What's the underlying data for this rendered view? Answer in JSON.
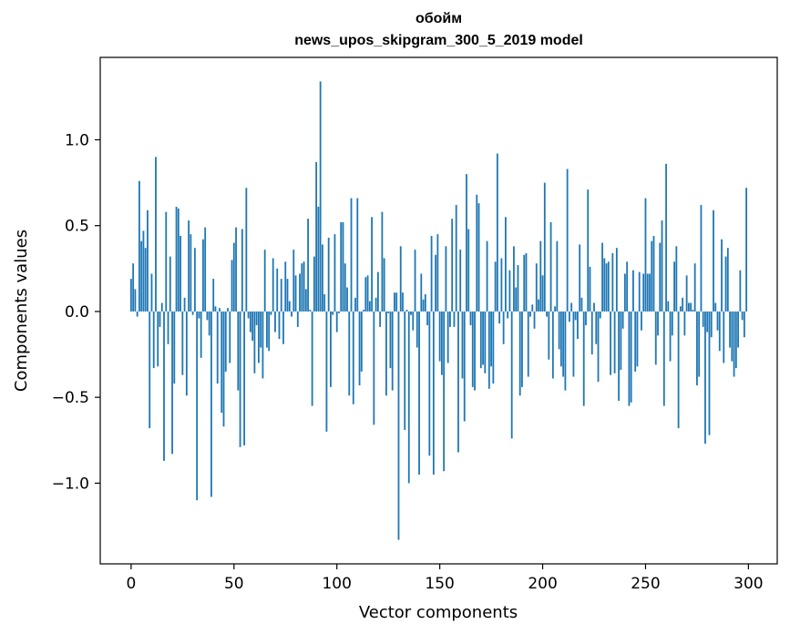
{
  "chart_data": {
    "type": "bar",
    "title": "обойм",
    "subtitle": "news_upos_skipgram_300_5_2019 model",
    "xlabel": "Vector components",
    "ylabel": "Components values",
    "xlim": [
      -15,
      314
    ],
    "ylim": [
      -1.47,
      1.48
    ],
    "x_ticks": [
      0,
      50,
      100,
      150,
      200,
      250,
      300
    ],
    "x_tick_labels": [
      "0",
      "50",
      "100",
      "150",
      "200",
      "250",
      "300"
    ],
    "y_ticks": [
      -1.0,
      -0.5,
      0.0,
      0.5,
      1.0
    ],
    "y_tick_labels": [
      "−1.0",
      "−0.5",
      "0.0",
      "0.5",
      "1.0"
    ],
    "bar_color": "#1f77b4",
    "grid": false,
    "values": [
      0.19,
      0.28,
      0.13,
      -0.03,
      0.76,
      0.41,
      0.47,
      0.37,
      0.59,
      -0.68,
      0.22,
      -0.33,
      0.9,
      -0.32,
      -0.09,
      0.05,
      -0.87,
      0.58,
      -0.19,
      0.32,
      -0.83,
      -0.42,
      0.61,
      0.6,
      0.44,
      -0.37,
      0.08,
      -0.49,
      0.53,
      0.45,
      -0.02,
      0.37,
      -1.1,
      -0.04,
      -0.27,
      0.42,
      0.49,
      -0.05,
      -0.14,
      -1.08,
      0.19,
      0.03,
      -0.42,
      0.02,
      -0.59,
      -0.67,
      -0.35,
      0.02,
      -0.3,
      0.3,
      0.4,
      0.49,
      -0.46,
      -0.79,
      0.48,
      -0.78,
      0.72,
      -0.04,
      -0.12,
      -0.17,
      -0.36,
      -0.08,
      -0.3,
      -0.21,
      -0.39,
      0.36,
      -0.21,
      -0.23,
      -0.02,
      0.31,
      -0.12,
      0.25,
      -0.16,
      0.19,
      -0.19,
      0.29,
      0.19,
      0.06,
      -0.03,
      0.36,
      0.21,
      -0.09,
      0.22,
      0.28,
      0.29,
      0.13,
      0.54,
      0.01,
      -0.55,
      0.32,
      0.87,
      0.61,
      1.34,
      0.39,
      0.1,
      -0.7,
      0.43,
      -0.44,
      -0.02,
      0.45,
      -0.12,
      -0.01,
      0.52,
      0.52,
      0.28,
      0.14,
      -0.49,
      0.66,
      -0.54,
      0.08,
      0.66,
      -0.43,
      -0.35,
      0.01,
      0.2,
      0.21,
      0.06,
      0.55,
      -0.66,
      0.08,
      0.23,
      -0.09,
      0.58,
      0.31,
      -0.49,
      -0.01,
      -0.33,
      -0.46,
      0.11,
      0.11,
      -1.33,
      0.38,
      0.11,
      -0.69,
      0.01,
      -1.0,
      -0.02,
      -0.11,
      0.36,
      -0.21,
      -0.95,
      0.22,
      0.07,
      0.1,
      -0.08,
      -0.84,
      0.44,
      -0.95,
      0.33,
      0.45,
      -0.29,
      -0.37,
      -0.93,
      0.38,
      -0.3,
      -0.09,
      0.54,
      -0.09,
      0.62,
      -0.82,
      0.36,
      -0.39,
      -0.64,
      0.8,
      0.48,
      -0.08,
      -0.44,
      -0.46,
      0.68,
      0.63,
      -0.33,
      -0.31,
      -0.36,
      0.41,
      -0.45,
      -0.32,
      -0.42,
      0.29,
      0.92,
      -0.07,
      0.31,
      -0.19,
      0.55,
      -0.04,
      0.24,
      -0.74,
      0.38,
      0.14,
      0.27,
      -0.49,
      -0.44,
      0.33,
      0.34,
      -0.38,
      -0.03,
      0.04,
      -0.1,
      0.28,
      0.07,
      0.41,
      0.21,
      0.75,
      -0.03,
      -0.28,
      0.52,
      -0.39,
      0.03,
      0.41,
      -0.22,
      -0.32,
      -0.38,
      -0.46,
      0.83,
      -0.06,
      0.05,
      -0.38,
      -0.05,
      -0.16,
      0.39,
      0.08,
      -0.55,
      -0.08,
      0.71,
      0.26,
      -0.25,
      0.05,
      -0.19,
      -0.41,
      -0.04,
      0.4,
      0.31,
      0.28,
      0.29,
      -0.37,
      0.34,
      -0.36,
      0.37,
      -0.52,
      -0.34,
      -0.1,
      0.22,
      0.29,
      -0.55,
      -0.53,
      0.24,
      -0.35,
      -0.32,
      0.23,
      -0.11,
      0.22,
      0.66,
      0.22,
      0.22,
      0.41,
      0.44,
      -0.31,
      -0.14,
      0.4,
      0.53,
      -0.55,
      0.86,
      0.06,
      -0.29,
      -0.14,
      0.29,
      0.38,
      -0.68,
      0.03,
      0.08,
      -0.14,
      0.21,
      0.05,
      0.05,
      0.01,
      0.28,
      -0.43,
      -0.38,
      0.62,
      -0.09,
      -0.77,
      -0.12,
      -0.72,
      -0.15,
      0.59,
      0.05,
      -0.11,
      -0.23,
      0.42,
      -0.3,
      0.32,
      0.37,
      -0.21,
      -0.29,
      -0.38,
      -0.33,
      -0.21,
      0.24,
      -0.05,
      -0.15,
      0.72
    ]
  }
}
